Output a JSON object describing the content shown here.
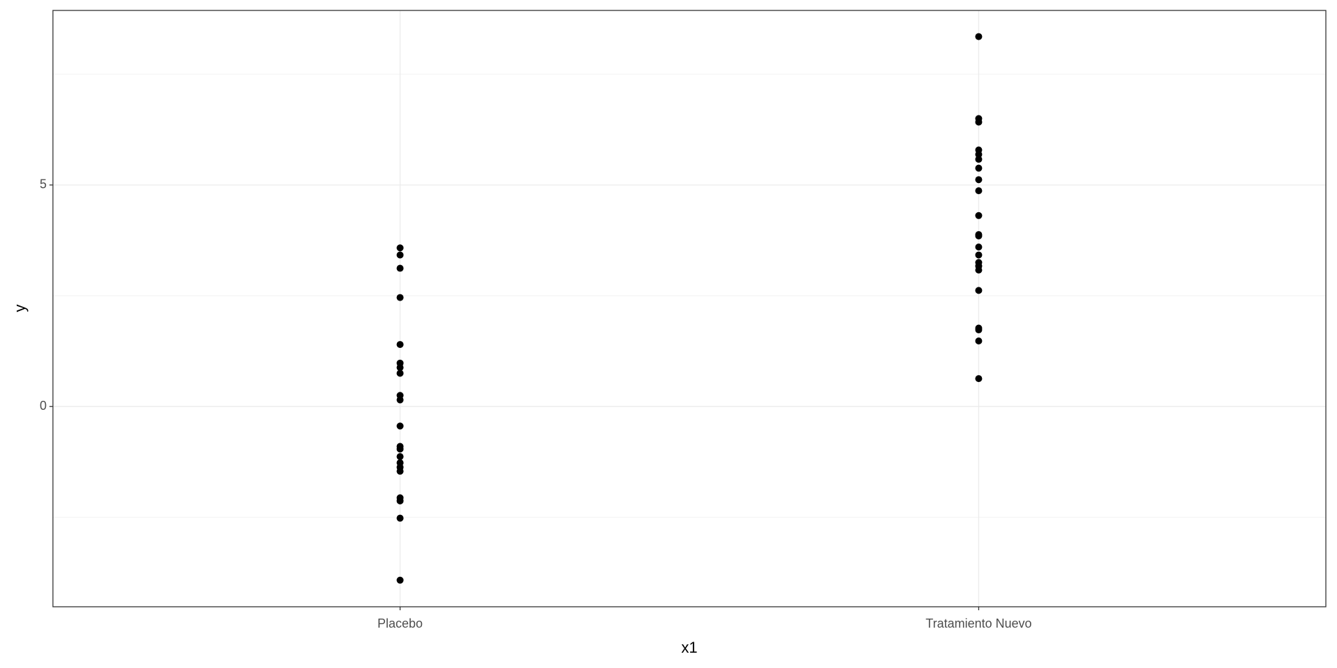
{
  "chart_data": {
    "type": "strip",
    "x_label": "x1",
    "y_label": "y",
    "categories": [
      "Placebo",
      "Tratamiento Nuevo"
    ],
    "values": [
      [
        3.58,
        3.42,
        3.12,
        2.46,
        1.4,
        0.98,
        0.88,
        0.75,
        0.25,
        0.15,
        -0.44,
        -0.9,
        -0.96,
        -1.13,
        -1.27,
        -1.37,
        -1.46,
        -2.06,
        -2.13,
        -2.52,
        -3.92
      ],
      [
        8.35,
        6.5,
        6.42,
        5.79,
        5.69,
        5.58,
        5.38,
        5.12,
        4.87,
        4.31,
        3.88,
        3.85,
        3.6,
        3.42,
        3.25,
        3.17,
        3.08,
        2.62,
        1.77,
        1.73,
        1.48,
        0.63
      ]
    ],
    "color": "#000000",
    "ylim": [
      -4.52,
      8.94
    ],
    "yticks": [
      0,
      5
    ],
    "minor_grid": [
      -2.5,
      2.5,
      7.5
    ],
    "grid": true
  }
}
